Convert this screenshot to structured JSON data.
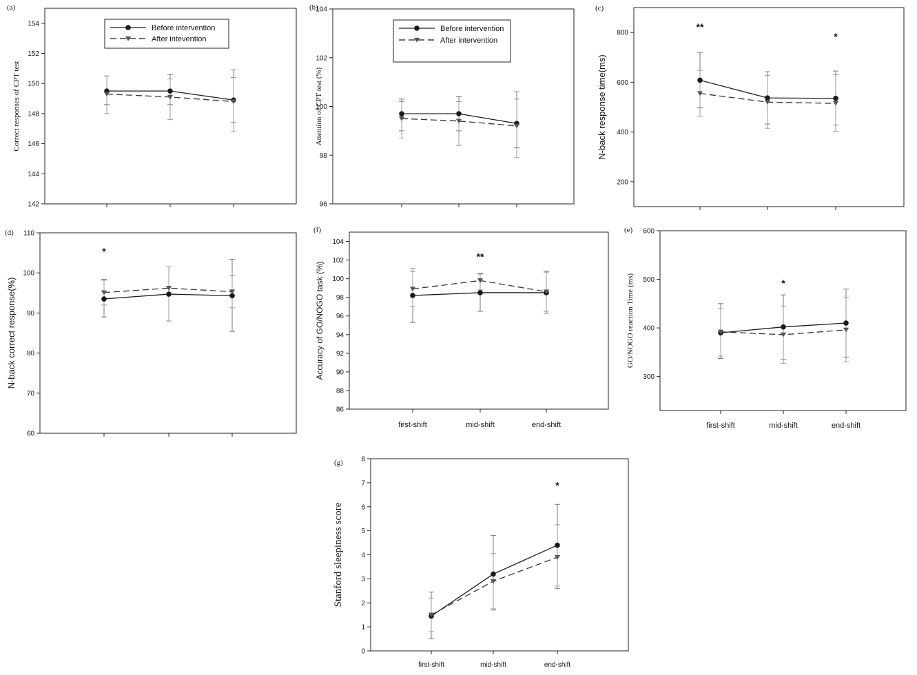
{
  "chart_data": [
    {
      "id": "a",
      "type": "line",
      "panel_label": "(a)",
      "title": "",
      "xlabel": "",
      "ylabel": "Correct responses of CPT test",
      "ylim": [
        142,
        155
      ],
      "yticks": [
        142,
        144,
        146,
        148,
        150,
        152,
        154
      ],
      "categories": [
        "",
        "",
        ""
      ],
      "legend": {
        "placement": "top-center",
        "entries": [
          "Before intervention",
          "After intevention"
        ]
      },
      "series": [
        {
          "name": "Before intervention",
          "values": [
            149.5,
            149.5,
            148.9
          ],
          "err_high": [
            150.5,
            150.6,
            150.9
          ],
          "err_low": [
            148.6,
            148.6,
            147.4
          ]
        },
        {
          "name": "After intevention",
          "values": [
            149.3,
            149.1,
            148.8
          ],
          "err_high": [
            150.5,
            150.3,
            150.4
          ],
          "err_low": [
            148.0,
            147.6,
            146.8
          ]
        }
      ],
      "annotations": []
    },
    {
      "id": "b",
      "type": "line",
      "panel_label": "(b)",
      "title": "",
      "xlabel": "",
      "ylabel": "Attention of CPT test (%)",
      "ylim": [
        96,
        104
      ],
      "yticks": [
        96,
        98,
        100,
        102,
        104
      ],
      "categories": [
        "",
        "",
        ""
      ],
      "legend": {
        "placement": "top-center",
        "entries": [
          "Before intervention",
          "After intervention"
        ]
      },
      "series": [
        {
          "name": "Before intervention",
          "values": [
            99.7,
            99.7,
            99.3
          ],
          "err_high": [
            100.3,
            100.4,
            100.6
          ],
          "err_low": [
            99.0,
            99.0,
            98.3
          ]
        },
        {
          "name": "After intervention",
          "values": [
            99.5,
            99.4,
            99.2
          ],
          "err_high": [
            100.2,
            100.2,
            100.3
          ],
          "err_low": [
            98.7,
            98.4,
            97.9
          ]
        }
      ],
      "annotations": []
    },
    {
      "id": "c",
      "type": "line",
      "panel_label": "(c)",
      "title": "",
      "xlabel": "",
      "ylabel": "N-back response time(ms)",
      "ylim": [
        100,
        900
      ],
      "yticks": [
        200,
        400,
        600,
        800
      ],
      "categories": [
        "",
        "",
        ""
      ],
      "legend": null,
      "series": [
        {
          "name": "Before intervention",
          "values": [
            608,
            537,
            535
          ],
          "err_high": [
            720,
            642,
            645
          ],
          "err_low": [
            497,
            432,
            428
          ]
        },
        {
          "name": "After intervention",
          "values": [
            555,
            520,
            515
          ],
          "err_high": [
            648,
            627,
            630
          ],
          "err_low": [
            463,
            415,
            403
          ]
        }
      ],
      "annotations": [
        {
          "category_index": 0,
          "text": "**",
          "y": 808
        },
        {
          "category_index": 2,
          "text": "*",
          "y": 770
        }
      ]
    },
    {
      "id": "d",
      "type": "line",
      "panel_label": "(d)",
      "title": "",
      "xlabel": "",
      "ylabel": "N-back correct response(%)",
      "ylim": [
        60,
        110
      ],
      "yticks": [
        60,
        70,
        80,
        90,
        100,
        110
      ],
      "categories": [
        "",
        "",
        ""
      ],
      "legend": null,
      "series": [
        {
          "name": "Before intervention",
          "values": [
            93.5,
            94.7,
            94.3
          ],
          "err_high": [
            98.2,
            101.5,
            103.4
          ],
          "err_low": [
            89.0,
            88.0,
            85.4
          ]
        },
        {
          "name": "After intervention",
          "values": [
            95.1,
            96.2,
            95.3
          ],
          "err_high": [
            98.4,
            101.5,
            99.3
          ],
          "err_low": [
            92.0,
            88.0,
            91.3
          ]
        }
      ],
      "annotations": [
        {
          "category_index": 0,
          "text": "*",
          "y": 104.5
        }
      ]
    },
    {
      "id": "f",
      "type": "line",
      "panel_label": "(f)",
      "title": "",
      "xlabel": "",
      "ylabel": "Accuracy of GO/NOGO task (%)",
      "ylim": [
        86,
        105
      ],
      "yticks": [
        86,
        88,
        90,
        92,
        94,
        96,
        98,
        100,
        102,
        104
      ],
      "categories": [
        "first-shift",
        "mid-shift",
        "end-shift"
      ],
      "legend": null,
      "series": [
        {
          "name": "Before intervention",
          "values": [
            98.2,
            98.5,
            98.5
          ],
          "err_high": [
            100.8,
            100.5,
            100.8
          ],
          "err_low": [
            95.3,
            96.5,
            96.3
          ]
        },
        {
          "name": "After intervention",
          "values": [
            98.9,
            99.8,
            98.6
          ],
          "err_high": [
            101.1,
            100.6,
            100.7
          ],
          "err_low": [
            97.0,
            98.8,
            96.5
          ]
        }
      ],
      "annotations": [
        {
          "category_index": 1,
          "text": "**",
          "y": 102.0
        }
      ]
    },
    {
      "id": "e",
      "type": "line",
      "panel_label": "(e)",
      "title": "",
      "xlabel": "",
      "ylabel": "GO/NOGO reaction Time (ms)",
      "ylim": [
        230,
        600
      ],
      "yticks": [
        300,
        400,
        500,
        600
      ],
      "categories": [
        "first-shift",
        "mid-shift",
        "end-shift"
      ],
      "legend": null,
      "series": [
        {
          "name": "Before intervention",
          "values": [
            390,
            402,
            410
          ],
          "err_high": [
            450,
            468,
            480
          ],
          "err_low": [
            337,
            335,
            340
          ]
        },
        {
          "name": "After intervention",
          "values": [
            392,
            386,
            396
          ],
          "err_high": [
            440,
            445,
            462
          ],
          "err_low": [
            342,
            327,
            330
          ]
        }
      ],
      "annotations": [
        {
          "category_index": 1,
          "text": "*",
          "y": 485
        }
      ]
    },
    {
      "id": "g",
      "type": "line",
      "panel_label": "(g)",
      "title": "",
      "xlabel": "",
      "ylabel": "Stanford sleepiness score",
      "ylim": [
        0,
        8
      ],
      "yticks": [
        0,
        1,
        2,
        3,
        4,
        5,
        6,
        7,
        8
      ],
      "categories": [
        "first-shift",
        "mid-shift",
        "end-shift"
      ],
      "legend": null,
      "series": [
        {
          "name": "Before intervention",
          "values": [
            1.45,
            3.2,
            4.4
          ],
          "err_high": [
            2.45,
            4.8,
            6.1
          ],
          "err_low": [
            0.5,
            1.7,
            2.6
          ]
        },
        {
          "name": "After intervention",
          "values": [
            1.5,
            2.9,
            3.9
          ],
          "err_high": [
            2.2,
            4.05,
            5.25
          ],
          "err_low": [
            0.8,
            1.75,
            2.7
          ]
        }
      ],
      "annotations": [
        {
          "category_index": 2,
          "text": "*",
          "y": 6.75
        }
      ]
    }
  ]
}
